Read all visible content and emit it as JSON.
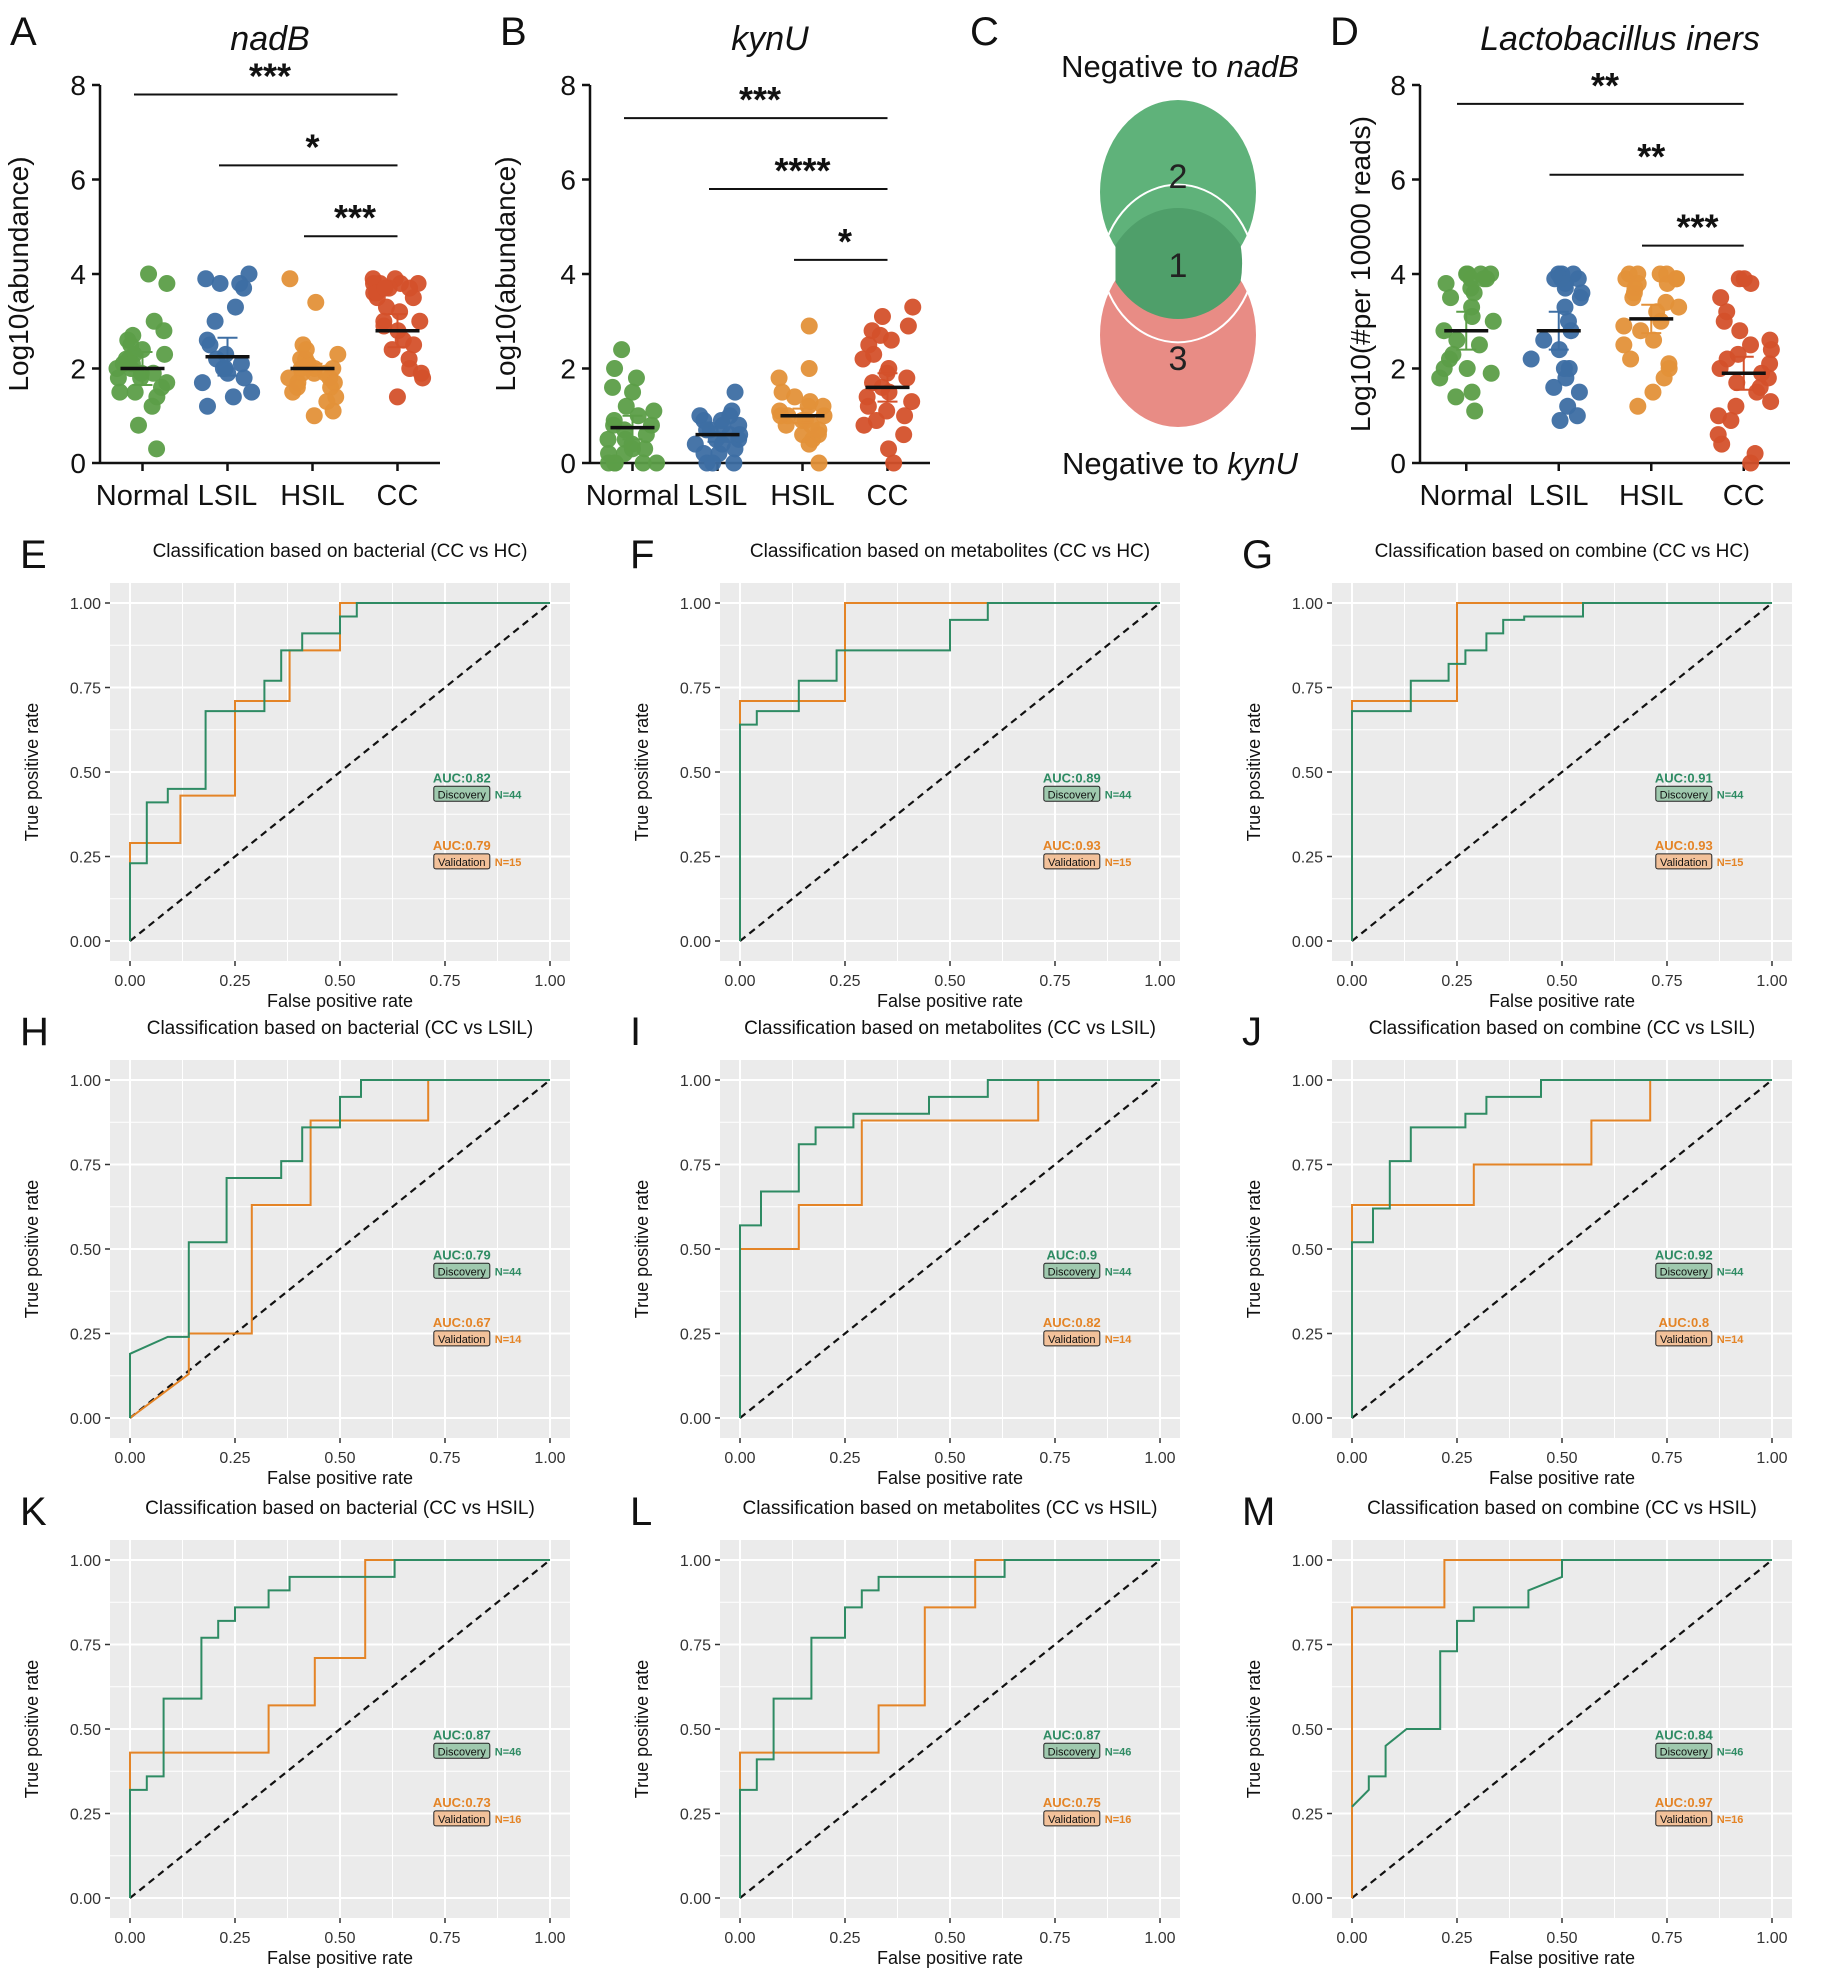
{
  "colors": {
    "normal": "#5c9e48",
    "lsil": "#3d6ea3",
    "hsil": "#e39139",
    "cc": "#d4512b",
    "discovery": "#2e8b63",
    "validation": "#e48426",
    "venn_top": "#5fb27a",
    "venn_bottom": "#e88c85",
    "venn_overlap": "#4f9f6a",
    "panel_bg": "#ebebeb"
  },
  "scatter_panels": [
    {
      "letter": "A",
      "title": "nadB",
      "ylabel": "Log10(abundance)",
      "groups": [
        "Normal",
        "LSIL",
        "HSIL",
        "CC"
      ],
      "ylim": [
        0,
        8
      ],
      "yticks": [
        "0",
        "2",
        "4",
        "6",
        "8"
      ],
      "means": [
        2.0,
        2.25,
        2.0,
        2.8
      ],
      "errors": [
        0.35,
        0.4,
        0.1,
        0.35
      ],
      "points": [
        [
          2.0,
          2.2,
          1.8,
          2.5,
          2.6,
          1.5,
          1.7,
          2.1,
          2.3,
          2.8,
          3.0,
          1.4,
          1.9,
          2.0,
          2.4,
          4.0,
          3.8,
          1.2,
          0.3,
          1.6,
          2.2,
          1.9,
          2.7,
          1.8,
          0.8,
          2.1,
          1.5,
          2.3
        ],
        [
          4.0,
          3.8,
          3.9,
          2.0,
          1.8,
          2.5,
          3.7,
          1.2,
          1.5,
          2.2,
          2.1,
          1.7,
          3.0,
          3.3,
          1.9,
          2.6,
          3.8,
          1.4,
          2.0,
          2.3
        ],
        [
          3.9,
          3.4,
          2.2,
          1.9,
          2.0,
          1.5,
          1.8,
          1.1,
          1.6,
          2.1,
          2.3,
          1.7,
          1.9,
          1.4,
          2.0,
          2.2,
          1.0,
          1.8,
          2.5,
          1.6,
          2.0,
          1.3,
          2.4,
          1.9,
          1.7
        ],
        [
          3.8,
          3.9,
          3.7,
          3.8,
          3.6,
          3.5,
          3.9,
          3.2,
          3.0,
          2.8,
          2.5,
          2.2,
          1.8,
          1.4,
          3.7,
          3.8,
          2.6,
          3.0,
          3.3,
          2.0,
          3.8,
          3.5,
          2.4,
          1.9,
          3.6,
          3.7,
          2.9
        ]
      ],
      "brackets": [
        {
          "from": 0,
          "to": 3,
          "y": 7.8,
          "label": "***"
        },
        {
          "from": 1,
          "to": 3,
          "y": 6.3,
          "label": "*"
        },
        {
          "from": 2,
          "to": 3,
          "y": 4.8,
          "label": "***"
        }
      ]
    },
    {
      "letter": "B",
      "title": "kynU",
      "ylabel": "Log10(abundance)",
      "groups": [
        "Normal",
        "LSIL",
        "HSIL",
        "CC"
      ],
      "ylim": [
        0,
        8
      ],
      "yticks": [
        "0",
        "2",
        "4",
        "6",
        "8"
      ],
      "means": [
        0.75,
        0.6,
        1.0,
        1.6
      ],
      "errors": [
        0.25,
        0.15,
        0.15,
        0.3
      ],
      "points": [
        [
          0.0,
          0.5,
          1.2,
          2.4,
          1.8,
          0.8,
          0.3,
          0.0,
          1.0,
          0.6,
          0.2,
          1.5,
          0.9,
          0.0,
          0.4,
          2.0,
          0.7,
          1.1,
          0.0,
          0.3,
          0.8,
          0.5,
          1.6,
          0.0,
          0.2
        ],
        [
          0.0,
          0.4,
          0.8,
          1.0,
          0.6,
          0.2,
          1.5,
          0.5,
          0.9,
          0.0,
          0.3,
          0.7,
          1.1,
          0.4,
          0.6,
          0.8,
          0.2,
          0.5,
          0.0,
          1.0,
          0.7,
          0.9
        ],
        [
          0.8,
          1.2,
          0.6,
          2.9,
          2.0,
          1.0,
          0.5,
          1.5,
          0.9,
          0.0,
          1.3,
          0.7,
          1.1,
          1.0,
          1.8,
          0.4,
          1.4,
          0.9,
          0.6,
          1.2,
          0.8,
          1.0
        ],
        [
          3.3,
          3.1,
          2.8,
          2.5,
          2.2,
          2.0,
          1.8,
          1.5,
          1.2,
          1.0,
          0.6,
          0.0,
          2.6,
          1.7,
          1.4,
          0.9,
          2.9,
          1.9,
          1.1,
          0.3,
          2.3,
          1.6,
          0.8,
          1.3,
          2.7
        ]
      ],
      "brackets": [
        {
          "from": 0,
          "to": 3,
          "y": 7.3,
          "label": "***"
        },
        {
          "from": 1,
          "to": 3,
          "y": 5.8,
          "label": "****"
        },
        {
          "from": 2,
          "to": 3,
          "y": 4.3,
          "label": "*"
        }
      ]
    },
    {
      "letter": "D",
      "title": "Lactobacillus iners",
      "ylabel": "Log10(#per 10000 reads)",
      "groups": [
        "Normal",
        "LSIL",
        "HSIL",
        "CC"
      ],
      "ylim": [
        0,
        8
      ],
      "yticks": [
        "0",
        "2",
        "4",
        "6",
        "8"
      ],
      "means": [
        2.8,
        2.8,
        3.05,
        1.9
      ],
      "errors": [
        0.4,
        0.4,
        0.3,
        0.35
      ],
      "points": [
        [
          4.0,
          3.9,
          4.0,
          3.8,
          3.9,
          4.0,
          3.7,
          3.5,
          3.0,
          2.8,
          2.5,
          2.2,
          2.0,
          1.8,
          1.5,
          1.1,
          3.3,
          2.6,
          1.9,
          4.0,
          3.9,
          3.6,
          2.3,
          1.4,
          3.1,
          2.0
        ],
        [
          4.0,
          3.9,
          4.0,
          3.8,
          3.9,
          3.7,
          3.5,
          3.0,
          2.6,
          2.2,
          2.0,
          1.8,
          1.5,
          1.2,
          0.9,
          3.3,
          2.8,
          1.0,
          4.0,
          3.6,
          2.4,
          1.6,
          3.9,
          2.0
        ],
        [
          4.0,
          3.9,
          4.0,
          3.8,
          3.9,
          4.0,
          3.7,
          3.5,
          3.2,
          3.0,
          2.8,
          2.5,
          2.2,
          2.0,
          1.8,
          1.5,
          1.2,
          3.4,
          2.6,
          3.9,
          4.0,
          3.6,
          2.9,
          3.8,
          2.1,
          3.3
        ],
        [
          3.9,
          3.8,
          3.5,
          3.2,
          2.8,
          2.5,
          2.2,
          2.0,
          1.8,
          1.5,
          1.2,
          1.0,
          0.6,
          0.0,
          3.0,
          2.3,
          1.6,
          0.4,
          2.6,
          1.9,
          1.3,
          0.9,
          2.1,
          1.7,
          0.2,
          3.9,
          2.4
        ]
      ],
      "brackets": [
        {
          "from": 0,
          "to": 3,
          "y": 7.6,
          "label": "**"
        },
        {
          "from": 1,
          "to": 3,
          "y": 6.1,
          "label": "**"
        },
        {
          "from": 2,
          "to": 3,
          "y": 4.6,
          "label": "***"
        }
      ]
    }
  ],
  "venn": {
    "letter": "C",
    "top_label_prefix": "Negative to ",
    "top_label_gene": "nadB",
    "bottom_label_prefix": "Negative to ",
    "bottom_label_gene": "kynU",
    "top_only": "2",
    "overlap": "1",
    "bottom_only": "3"
  },
  "roc_axes": {
    "xlabel": "False positive rate",
    "ylabel": "True positive rate",
    "ticks": [
      "0.00",
      "0.25",
      "0.50",
      "0.75",
      "1.00"
    ],
    "discovery_badge": "Discovery",
    "validation_badge": "Validation"
  },
  "chart_data": [
    {
      "letter": "E",
      "type": "line",
      "title": "Classification based on bacterial (CC vs HC)",
      "discovery": {
        "auc": "AUC:0.82",
        "n": "N=44",
        "x": [
          0,
          0,
          0.04,
          0.04,
          0.09,
          0.09,
          0.18,
          0.18,
          0.32,
          0.32,
          0.36,
          0.36,
          0.41,
          0.41,
          0.5,
          0.5,
          0.54,
          0.54,
          1
        ],
        "y": [
          0,
          0.23,
          0.23,
          0.41,
          0.41,
          0.45,
          0.45,
          0.68,
          0.68,
          0.77,
          0.77,
          0.86,
          0.86,
          0.91,
          0.91,
          0.96,
          0.96,
          1,
          1
        ]
      },
      "validation": {
        "auc": "AUC:0.79",
        "n": "N=15",
        "x": [
          0,
          0,
          0.12,
          0.12,
          0.25,
          0.25,
          0.38,
          0.38,
          0.5,
          0.5,
          1
        ],
        "y": [
          0,
          0.29,
          0.29,
          0.43,
          0.43,
          0.71,
          0.71,
          0.86,
          0.86,
          1,
          1
        ]
      }
    },
    {
      "letter": "F",
      "type": "line",
      "title": "Classification based on metabolites (CC vs HC)",
      "discovery": {
        "auc": "AUC:0.89",
        "n": "N=44",
        "x": [
          0,
          0,
          0.04,
          0.04,
          0.14,
          0.14,
          0.23,
          0.23,
          0.5,
          0.5,
          0.59,
          0.59,
          1
        ],
        "y": [
          0,
          0.64,
          0.64,
          0.68,
          0.68,
          0.77,
          0.77,
          0.86,
          0.86,
          0.95,
          0.95,
          1,
          1
        ]
      },
      "validation": {
        "auc": "AUC:0.93",
        "n": "N=15",
        "x": [
          0,
          0,
          0.25,
          0.25,
          1
        ],
        "y": [
          0,
          0.71,
          0.71,
          1,
          1
        ]
      }
    },
    {
      "letter": "G",
      "type": "line",
      "title": "Classification based on combine (CC vs HC)",
      "discovery": {
        "auc": "AUC:0.91",
        "n": "N=44",
        "x": [
          0,
          0,
          0.14,
          0.14,
          0.23,
          0.23,
          0.27,
          0.27,
          0.32,
          0.32,
          0.36,
          0.36,
          0.41,
          0.41,
          0.55,
          0.55,
          1
        ],
        "y": [
          0,
          0.68,
          0.68,
          0.77,
          0.77,
          0.82,
          0.82,
          0.86,
          0.86,
          0.91,
          0.91,
          0.95,
          0.95,
          0.96,
          0.96,
          1,
          1
        ]
      },
      "validation": {
        "auc": "AUC:0.93",
        "n": "N=15",
        "x": [
          0,
          0,
          0.25,
          0.25,
          1
        ],
        "y": [
          0,
          0.71,
          0.71,
          1,
          1
        ]
      }
    },
    {
      "letter": "H",
      "type": "line",
      "title": "Classification based on bacterial (CC vs LSIL)",
      "discovery": {
        "auc": "AUC:0.79",
        "n": "N=44",
        "x": [
          0,
          0,
          0.09,
          0.09,
          0.14,
          0.14,
          0.23,
          0.23,
          0.36,
          0.36,
          0.41,
          0.41,
          0.45,
          0.45,
          0.5,
          0.5,
          0.55,
          0.55,
          1
        ],
        "y": [
          0,
          0.19,
          0.24,
          0.24,
          0.24,
          0.52,
          0.52,
          0.71,
          0.71,
          0.76,
          0.76,
          0.86,
          0.86,
          0.86,
          0.86,
          0.95,
          0.95,
          1,
          1
        ]
      },
      "validation": {
        "auc": "AUC:0.67",
        "n": "N=14",
        "x": [
          0,
          0.14,
          0.14,
          0.29,
          0.29,
          0.43,
          0.43,
          0.5,
          0.5,
          0.71,
          0.71,
          1
        ],
        "y": [
          0,
          0.13,
          0.25,
          0.25,
          0.63,
          0.63,
          0.88,
          0.88,
          0.88,
          0.88,
          1,
          1
        ]
      }
    },
    {
      "letter": "I",
      "type": "line",
      "title": "Classification based on metabolites (CC vs LSIL)",
      "discovery": {
        "auc": "AUC:0.9",
        "n": "N=44",
        "x": [
          0,
          0,
          0.05,
          0.05,
          0.14,
          0.14,
          0.18,
          0.18,
          0.27,
          0.27,
          0.45,
          0.45,
          0.59,
          0.59,
          1
        ],
        "y": [
          0,
          0.57,
          0.57,
          0.67,
          0.67,
          0.81,
          0.81,
          0.86,
          0.86,
          0.9,
          0.9,
          0.95,
          0.95,
          1,
          1
        ]
      },
      "validation": {
        "auc": "AUC:0.82",
        "n": "N=14",
        "x": [
          0,
          0,
          0.14,
          0.14,
          0.29,
          0.29,
          0.71,
          0.71,
          1
        ],
        "y": [
          0,
          0.5,
          0.5,
          0.63,
          0.63,
          0.88,
          0.88,
          1,
          1
        ]
      }
    },
    {
      "letter": "J",
      "type": "line",
      "title": "Classification based on combine (CC vs LSIL)",
      "discovery": {
        "auc": "AUC:0.92",
        "n": "N=44",
        "x": [
          0,
          0,
          0.05,
          0.05,
          0.09,
          0.09,
          0.14,
          0.14,
          0.27,
          0.27,
          0.32,
          0.32,
          0.45,
          0.45,
          1
        ],
        "y": [
          0,
          0.52,
          0.52,
          0.62,
          0.62,
          0.76,
          0.76,
          0.86,
          0.86,
          0.9,
          0.9,
          0.95,
          0.95,
          1,
          1
        ]
      },
      "validation": {
        "auc": "AUC:0.8",
        "n": "N=14",
        "x": [
          0,
          0,
          0.29,
          0.29,
          0.57,
          0.57,
          0.71,
          0.71,
          1
        ],
        "y": [
          0,
          0.63,
          0.63,
          0.75,
          0.75,
          0.88,
          0.88,
          1,
          1
        ]
      }
    },
    {
      "letter": "K",
      "type": "line",
      "title": "Classification based on bacterial (CC vs HSIL)",
      "discovery": {
        "auc": "AUC:0.87",
        "n": "N=46",
        "x": [
          0,
          0,
          0.04,
          0.04,
          0.08,
          0.08,
          0.17,
          0.17,
          0.21,
          0.21,
          0.25,
          0.25,
          0.33,
          0.33,
          0.38,
          0.38,
          0.63,
          0.63,
          1
        ],
        "y": [
          0,
          0.32,
          0.32,
          0.36,
          0.36,
          0.59,
          0.59,
          0.77,
          0.77,
          0.82,
          0.82,
          0.86,
          0.86,
          0.91,
          0.91,
          0.95,
          0.95,
          1,
          1
        ]
      },
      "validation": {
        "auc": "AUC:0.73",
        "n": "N=16",
        "x": [
          0,
          0,
          0.33,
          0.33,
          0.44,
          0.44,
          0.56,
          0.56,
          1
        ],
        "y": [
          0,
          0.43,
          0.43,
          0.57,
          0.57,
          0.71,
          0.71,
          1,
          1
        ]
      }
    },
    {
      "letter": "L",
      "type": "line",
      "title": "Classification based on metabolites (CC vs HSIL)",
      "discovery": {
        "auc": "AUC:0.87",
        "n": "N=46",
        "x": [
          0,
          0,
          0.04,
          0.04,
          0.08,
          0.08,
          0.17,
          0.17,
          0.25,
          0.25,
          0.29,
          0.29,
          0.33,
          0.33,
          0.56,
          0.56,
          0.63,
          0.63,
          1
        ],
        "y": [
          0,
          0.32,
          0.32,
          0.41,
          0.41,
          0.59,
          0.59,
          0.77,
          0.77,
          0.86,
          0.86,
          0.91,
          0.91,
          0.95,
          0.95,
          0.95,
          0.95,
          1,
          1
        ]
      },
      "validation": {
        "auc": "AUC:0.75",
        "n": "N=16",
        "x": [
          0,
          0,
          0.33,
          0.33,
          0.44,
          0.44,
          0.56,
          0.56,
          1
        ],
        "y": [
          0,
          0.43,
          0.43,
          0.57,
          0.57,
          0.86,
          0.86,
          1,
          1
        ]
      }
    },
    {
      "letter": "M",
      "type": "line",
      "title": "Classification based on combine (CC vs HSIL)",
      "discovery": {
        "auc": "AUC:0.84",
        "n": "N=46",
        "x": [
          0,
          0.04,
          0.04,
          0.08,
          0.08,
          0.13,
          0.13,
          0.21,
          0.21,
          0.25,
          0.25,
          0.29,
          0.29,
          0.42,
          0.42,
          0.5,
          0.5,
          1
        ],
        "y": [
          0.27,
          0.32,
          0.36,
          0.36,
          0.45,
          0.5,
          0.5,
          0.5,
          0.73,
          0.73,
          0.82,
          0.82,
          0.86,
          0.86,
          0.91,
          0.95,
          1,
          1
        ]
      },
      "validation": {
        "auc": "AUC:0.97",
        "n": "N=16",
        "x": [
          0,
          0,
          0.22,
          0.22,
          1
        ],
        "y": [
          0,
          0.86,
          0.86,
          1,
          1
        ]
      }
    }
  ]
}
